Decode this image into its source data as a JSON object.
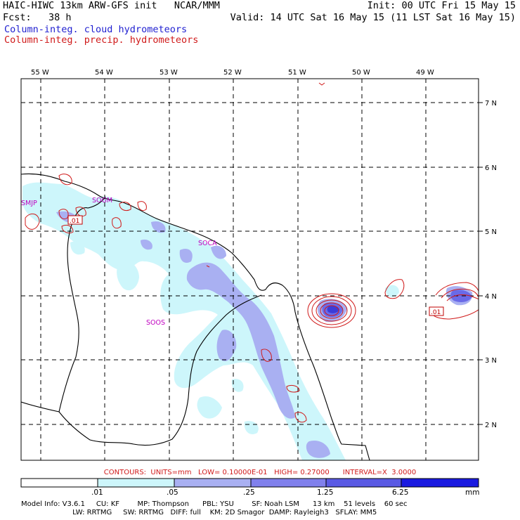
{
  "header": {
    "title": "HAIC-HIWC 13km ARW-GFS init   NCAR/MMM",
    "init": "Init: 00 UTC Fri 15 May 15",
    "fcst": "Fcst:   38 h",
    "valid": "Valid: 14 UTC Sat 16 May 15 (11 LST Sat 16 May 15)",
    "legend_cloud": "Column-integ. cloud hydrometeors",
    "legend_precip": "Column-integ. precip. hydrometeors"
  },
  "map": {
    "lon_labels": [
      "55 W",
      "54 W",
      "53 W",
      "52 W",
      "51 W",
      "50 W",
      "49 W"
    ],
    "lat_labels": [
      "7 N",
      "6 N",
      "5 N",
      "4 N",
      "3 N",
      "2 N"
    ],
    "stations": [
      "SMJP",
      "SOGM",
      "SOCA",
      "SOOS"
    ],
    "contour_labels": [
      ".01",
      ".01"
    ],
    "colors": {
      "cloud_light": "#cdf6fb",
      "cloud_mid": "#a9b0f2",
      "cloud_dark": "#6a6ae8",
      "cloud_deep": "#3c3cd8",
      "precip_contour": "#d01a1a"
    }
  },
  "contours_line": "CONTOURS:  UNITS=mm   LOW= 0.10000E-01   HIGH= 0.27000      INTERVAL=X  3.0000",
  "colorbar": {
    "values": [
      ".01",
      ".05",
      ".25",
      "1.25",
      "6.25"
    ],
    "unit": "mm",
    "colors": [
      "#ffffff",
      "#cdf6fb",
      "#a9b0f2",
      "#8080ec",
      "#5a5ae4",
      "#1a1ae0"
    ]
  },
  "model_info": {
    "line1": "Model Info: V3.6.1     CU: KF        MP: Thompson      PBL: YSU        SF: Noah LSM      13 km    51 levels    60 sec",
    "line2": "                       LW: RRTMG     SW: RRTMG   DIFF: full    KM: 2D Smagor  DAMP: Rayleigh3   SFLAY: MM5"
  }
}
